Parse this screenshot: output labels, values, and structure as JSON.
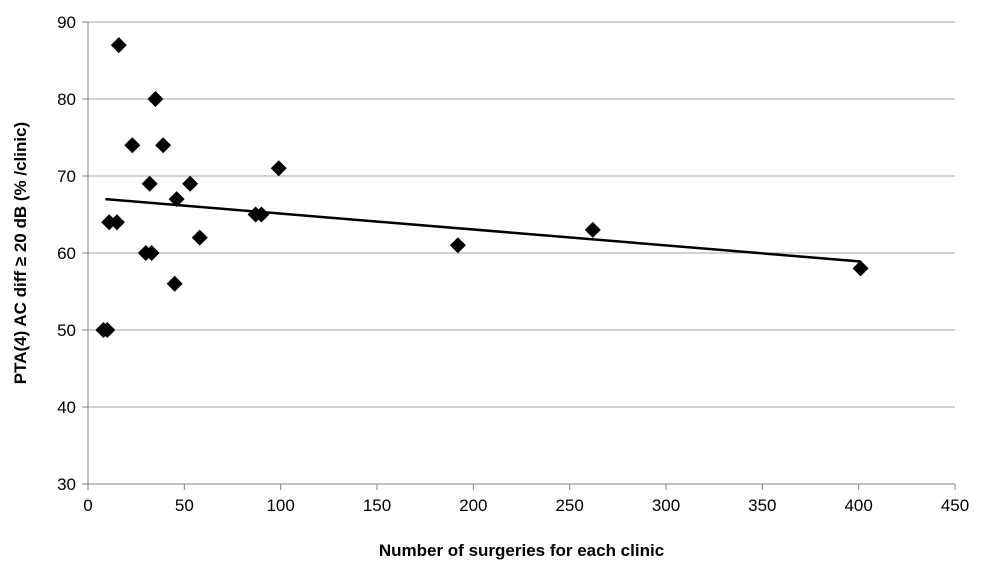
{
  "chart_data": {
    "type": "scatter",
    "title": "",
    "xlabel": "Number of surgeries for each clinic",
    "ylabel": "PTA(4) AC diff ≥ 20 dB (% /clinic)",
    "xlim": [
      0,
      450
    ],
    "ylim": [
      30,
      90
    ],
    "x_ticks": [
      0,
      50,
      100,
      150,
      200,
      250,
      300,
      350,
      400,
      450
    ],
    "y_ticks": [
      30,
      40,
      50,
      60,
      70,
      80,
      90
    ],
    "grid": "horizontal",
    "legend": "none",
    "marker": "diamond",
    "colors": {
      "marker": "#000000",
      "trendline": "#000000",
      "grid": "#a6a6a6",
      "axis": "#808080"
    },
    "series": [
      {
        "points": [
          [
            8,
            50
          ],
          [
            10,
            50
          ],
          [
            11,
            64
          ],
          [
            15,
            64
          ],
          [
            16,
            87
          ],
          [
            23,
            74
          ],
          [
            30,
            60
          ],
          [
            32,
            69
          ],
          [
            33,
            60
          ],
          [
            35,
            80
          ],
          [
            39,
            74
          ],
          [
            45,
            56
          ],
          [
            46,
            67
          ],
          [
            53,
            69
          ],
          [
            58,
            62
          ],
          [
            87,
            65
          ],
          [
            90,
            65
          ],
          [
            99,
            71
          ],
          [
            192,
            61
          ],
          [
            262,
            63
          ],
          [
            401,
            58
          ]
        ]
      }
    ],
    "trendline": {
      "type": "linear",
      "x": [
        9,
        401
      ],
      "y": [
        67.0,
        58.9
      ]
    }
  }
}
